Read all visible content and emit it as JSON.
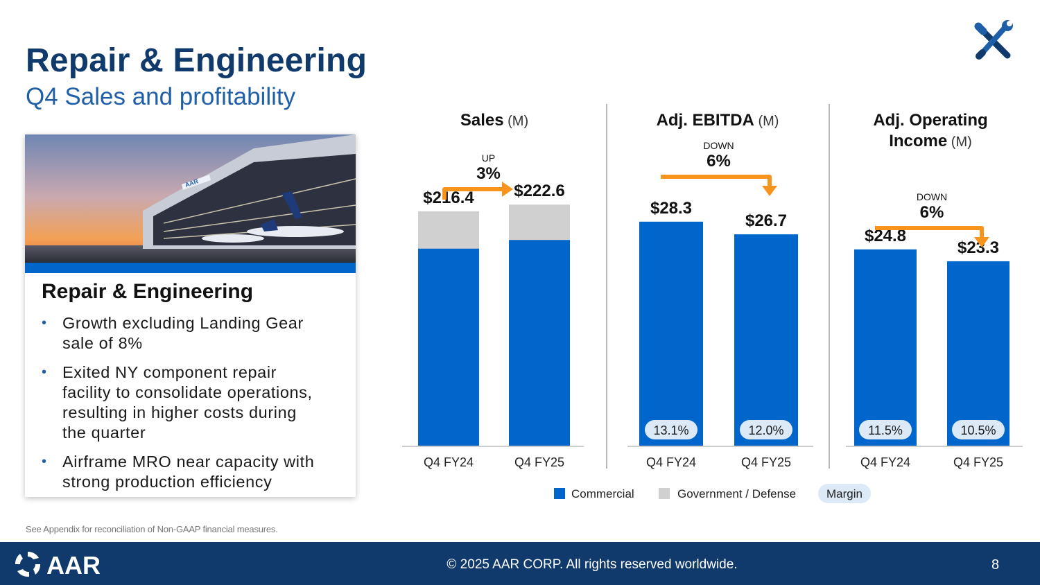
{
  "header": {
    "title": "Repair & Engineering",
    "subtitle": "Q4 Sales and profitability"
  },
  "card": {
    "title": "Repair & Engineering",
    "bullets": [
      [
        "Growth excluding Landing Gear",
        "sale of 8%"
      ],
      [
        "Exited NY component repair",
        "facility to consolidate operations,",
        "resulting in higher costs during",
        "the quarter"
      ],
      [
        "Airframe MRO near capacity with",
        "strong production efficiency"
      ]
    ],
    "image_logo_text": "AAR"
  },
  "footnote": "See Appendix for reconciliation of Non-GAAP financial measures.",
  "footer": {
    "logo_text": "AAR",
    "copyright": "© 2025 AAR CORP. All rights reserved worldwide.",
    "page_number": "8"
  },
  "colors": {
    "commercial": "#0066cc",
    "government_defense": "#d0d0d0",
    "margin_badge": "#dce9f7",
    "arrow": "#f7941d",
    "navy": "#0f3a6b",
    "accent_blue": "#1f5fa8"
  },
  "legend": {
    "commercial": "Commercial",
    "government_defense": "Government / Defense",
    "margin": "Margin"
  },
  "chart_data": [
    {
      "type": "bar",
      "title": "Sales",
      "unit": "(M)",
      "categories": [
        "Q4 FY24",
        "Q4 FY25"
      ],
      "stacked": true,
      "series": [
        {
          "name": "Commercial",
          "values": [
            182.0,
            190.0
          ]
        },
        {
          "name": "Government / Defense",
          "values": [
            34.4,
            32.6
          ]
        }
      ],
      "totals": [
        216.4,
        222.6
      ],
      "value_labels": [
        "$216.4",
        "$222.6"
      ],
      "change": {
        "direction": "UP",
        "pct": "3%"
      },
      "ylim": [
        0,
        300
      ]
    },
    {
      "type": "bar",
      "title": "Adj. EBITDA",
      "unit": "(M)",
      "categories": [
        "Q4 FY24",
        "Q4 FY25"
      ],
      "values": [
        28.3,
        26.7
      ],
      "value_labels": [
        "$28.3",
        "$26.7"
      ],
      "margins": [
        "13.1%",
        "12.0%"
      ],
      "change": {
        "direction": "DOWN",
        "pct": "6%"
      },
      "ylim": [
        0,
        37.4
      ]
    },
    {
      "type": "bar",
      "title": "Adj. Operating Income",
      "title_lines": [
        "Adj. Operating",
        "Income"
      ],
      "unit": "(M)",
      "categories": [
        "Q4 FY24",
        "Q4 FY25"
      ],
      "values": [
        24.8,
        23.3
      ],
      "value_labels": [
        "$24.8",
        "$23.3"
      ],
      "margins": [
        "11.5%",
        "10.5%"
      ],
      "change": {
        "direction": "DOWN",
        "pct": "6%"
      },
      "ylim": [
        0,
        37.4
      ]
    }
  ]
}
